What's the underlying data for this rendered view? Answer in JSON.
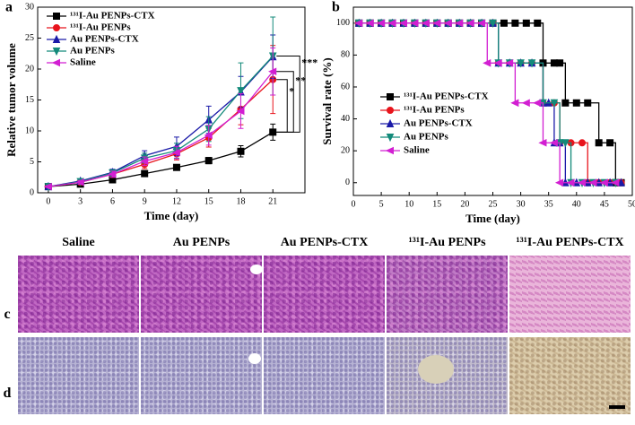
{
  "chart_data": [
    {
      "type": "line",
      "x_label": "Time (day)",
      "y_label": "Relative tumor volume",
      "x": [
        0,
        3,
        6,
        9,
        12,
        15,
        18,
        21
      ],
      "xlim": [
        -1,
        24
      ],
      "xticks": [
        0,
        3,
        6,
        9,
        12,
        15,
        18,
        21
      ],
      "ylim": [
        0,
        30
      ],
      "yticks": [
        0,
        5,
        10,
        15,
        20,
        25,
        30
      ],
      "legend": "upper left",
      "series": [
        {
          "name": "¹³¹I-Au PENPs-CTX",
          "color": "#000000",
          "marker": "square",
          "values": [
            1,
            1.4,
            2.1,
            3.1,
            4.1,
            5.2,
            6.7,
            9.8
          ],
          "errors": [
            0.1,
            0.2,
            0.3,
            0.3,
            0.4,
            0.5,
            0.9,
            1.3
          ]
        },
        {
          "name": "¹³¹I-Au PENPs",
          "color": "#e8141c",
          "marker": "circle",
          "values": [
            1,
            1.7,
            3.0,
            4.6,
            6.3,
            8.9,
            13.5,
            18.3
          ],
          "errors": [
            0.1,
            0.3,
            0.5,
            0.7,
            1.0,
            1.5,
            2.5,
            5.5
          ]
        },
        {
          "name": "Au PENPs-CTX",
          "color": "#1a1aa8",
          "marker": "triangle-up",
          "values": [
            1,
            1.9,
            3.3,
            6.0,
            7.5,
            11.8,
            16.3,
            22.0
          ],
          "errors": [
            0.1,
            0.3,
            0.5,
            0.8,
            1.5,
            2.2,
            2.5,
            3.5
          ]
        },
        {
          "name": "Au PENPs",
          "color": "#138a7a",
          "marker": "triangle-down",
          "values": [
            1,
            1.8,
            3.2,
            5.6,
            6.8,
            10.3,
            16.5,
            22.1
          ],
          "errors": [
            0.1,
            0.3,
            0.5,
            0.8,
            1.2,
            2.0,
            4.5,
            6.3
          ]
        },
        {
          "name": "Saline",
          "color": "#d21fd2",
          "marker": "triangle-left",
          "values": [
            1,
            1.7,
            3.0,
            5.1,
            6.5,
            9.3,
            13.2,
            19.6
          ],
          "errors": [
            0.1,
            0.3,
            0.5,
            0.7,
            1.0,
            1.6,
            2.8,
            3.8
          ]
        }
      ],
      "annotations": [
        {
          "text": "***"
        },
        {
          "text": "**"
        },
        {
          "text": "*"
        }
      ]
    },
    {
      "type": "step",
      "x_label": "Time (day)",
      "y_label": "Survival rate (%)",
      "xlim": [
        0,
        50
      ],
      "xticks": [
        0,
        5,
        10,
        15,
        20,
        25,
        30,
        35,
        40,
        45,
        50
      ],
      "ylim": [
        -8,
        110
      ],
      "yticks": [
        0,
        20,
        40,
        60,
        80,
        100
      ],
      "legend": "lower left",
      "series": [
        {
          "name": "¹³¹I-Au PENPs-CTX",
          "color": "#000000",
          "marker": "square",
          "x": [
            1,
            3,
            5,
            7,
            9,
            11,
            13,
            15,
            17,
            19,
            21,
            23,
            25,
            27,
            29,
            31,
            33,
            34,
            36,
            37,
            38,
            40,
            42,
            44,
            46,
            47,
            48
          ],
          "values": [
            100,
            100,
            100,
            100,
            100,
            100,
            100,
            100,
            100,
            100,
            100,
            100,
            100,
            100,
            100,
            100,
            100,
            75,
            75,
            75,
            50,
            50,
            50,
            25,
            25,
            0,
            0
          ]
        },
        {
          "name": "¹³¹I-Au PENPs",
          "color": "#e8141c",
          "marker": "circle",
          "x": [
            1,
            3,
            5,
            7,
            9,
            11,
            13,
            15,
            17,
            19,
            21,
            23,
            25,
            26,
            28,
            30,
            32,
            34,
            36,
            37,
            39,
            41,
            42,
            44,
            46,
            48
          ],
          "values": [
            100,
            100,
            100,
            100,
            100,
            100,
            100,
            100,
            100,
            100,
            100,
            100,
            100,
            75,
            75,
            75,
            75,
            50,
            50,
            25,
            25,
            25,
            0,
            0,
            0,
            0
          ]
        },
        {
          "name": "Au PENPs-CTX",
          "color": "#1a1aa8",
          "marker": "triangle-up",
          "x": [
            1,
            3,
            5,
            7,
            9,
            11,
            13,
            15,
            17,
            19,
            21,
            23,
            25,
            26,
            28,
            30,
            32,
            34,
            35,
            36,
            37,
            38,
            40,
            42,
            44,
            46,
            48
          ],
          "values": [
            100,
            100,
            100,
            100,
            100,
            100,
            100,
            100,
            100,
            100,
            100,
            100,
            100,
            75,
            75,
            75,
            75,
            50,
            50,
            25,
            25,
            0,
            0,
            0,
            0,
            0,
            0
          ]
        },
        {
          "name": "Au PENPs",
          "color": "#138a7a",
          "marker": "triangle-down",
          "x": [
            1,
            3,
            5,
            7,
            9,
            11,
            13,
            15,
            17,
            19,
            21,
            23,
            25,
            26,
            28,
            30,
            32,
            34,
            36,
            37,
            38,
            39,
            41,
            43,
            45,
            47
          ],
          "values": [
            100,
            100,
            100,
            100,
            100,
            100,
            100,
            100,
            100,
            100,
            100,
            100,
            100,
            75,
            75,
            75,
            75,
            50,
            50,
            25,
            25,
            0,
            0,
            0,
            0,
            0
          ]
        },
        {
          "name": "Saline",
          "color": "#d21fd2",
          "marker": "triangle-left",
          "x": [
            1,
            3,
            5,
            7,
            9,
            11,
            13,
            15,
            17,
            19,
            21,
            23,
            24,
            26,
            28,
            29,
            31,
            33,
            34,
            36,
            37,
            39,
            41,
            43,
            45,
            47
          ],
          "values": [
            100,
            100,
            100,
            100,
            100,
            100,
            100,
            100,
            100,
            100,
            100,
            100,
            75,
            75,
            75,
            50,
            50,
            50,
            25,
            25,
            0,
            0,
            0,
            0,
            0,
            0
          ]
        }
      ]
    }
  ],
  "figure": {
    "panel_labels": [
      "a",
      "b"
    ],
    "columns": [
      "Saline",
      "Au PENPs",
      "Au PENPs-CTX",
      "¹³¹I-Au PENPs",
      "¹³¹I-Au PENPs-CTX"
    ],
    "rows": [
      "c",
      "d"
    ]
  }
}
